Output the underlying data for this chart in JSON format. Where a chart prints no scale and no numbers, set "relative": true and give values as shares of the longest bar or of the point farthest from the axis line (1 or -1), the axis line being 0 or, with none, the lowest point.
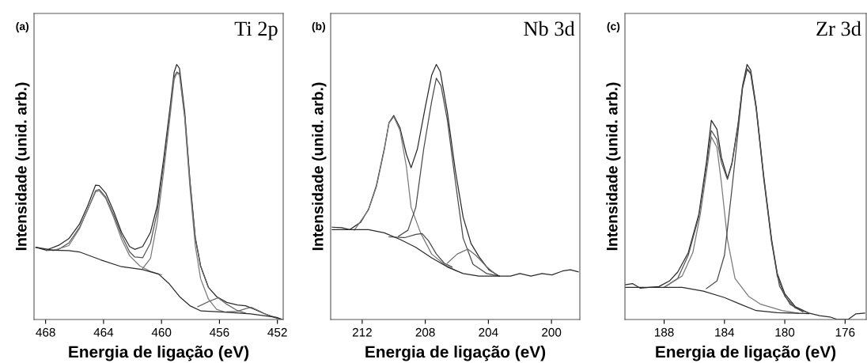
{
  "chart_data": [
    {
      "type": "line",
      "title": "Ti 2p",
      "annotations": [
        "(a)"
      ],
      "xlabel": "Energia de ligação (eV)",
      "ylabel": "Intensidade (unid. arb.)",
      "relative": true,
      "xlim": [
        468.8,
        451.6
      ],
      "xticks": [
        468,
        464,
        460,
        456,
        452
      ],
      "tick_labels": "x",
      "grid": false,
      "line_style": "solid",
      "marker": "none",
      "series": [
        {
          "color": "#2a2a2a",
          "x": [
            468.67,
            467.95,
            467.1,
            466.4,
            465.67,
            465.1,
            464.55,
            464.3,
            463.85,
            463.3,
            462.76,
            462.2,
            461.85,
            461.3,
            460.76,
            460.3,
            459.85,
            459.4,
            459.13,
            458.95,
            458.76,
            458.4,
            458.04,
            457.67,
            457.3,
            456.76,
            456.2,
            455.5,
            454.76,
            454.2,
            453.67,
            452.95,
            452.2,
            451.67
          ],
          "values": [
            0.283,
            0.272,
            0.291,
            0.317,
            0.373,
            0.445,
            0.527,
            0.525,
            0.496,
            0.424,
            0.342,
            0.286,
            0.275,
            0.286,
            0.342,
            0.445,
            0.63,
            0.836,
            0.969,
            1.0,
            0.985,
            0.815,
            0.548,
            0.322,
            0.209,
            0.126,
            0.09,
            0.067,
            0.057,
            0.054,
            0.042,
            0.024,
            0.008,
            0.0
          ]
        },
        {
          "color": "#555555",
          "x": [
            467.95,
            467.1,
            466.4,
            465.67,
            465.1,
            464.55,
            464.3,
            463.85,
            463.3,
            462.76,
            462.2,
            461.85,
            461.3,
            460.76,
            460.3,
            459.85,
            459.4,
            459.13,
            458.95,
            458.76,
            458.4,
            458.04,
            457.67,
            457.3,
            456.76
          ],
          "values": [
            0.27,
            0.275,
            0.3,
            0.36,
            0.43,
            0.505,
            0.51,
            0.48,
            0.41,
            0.33,
            0.265,
            0.245,
            0.242,
            0.3,
            0.42,
            0.61,
            0.82,
            0.95,
            0.97,
            0.965,
            0.8,
            0.54,
            0.32,
            0.21,
            0.126
          ]
        },
        {
          "color": "#7a7a7a",
          "x": [
            467.5,
            466.4,
            465.67,
            465.1,
            464.55,
            464.3,
            463.85,
            463.3,
            462.76,
            462.2,
            461.5,
            460.8,
            460.0
          ],
          "values": [
            0.27,
            0.29,
            0.355,
            0.43,
            0.5,
            0.505,
            0.475,
            0.4,
            0.315,
            0.25,
            0.21,
            0.19,
            0.175
          ]
        },
        {
          "color": "#7a7a7a",
          "x": [
            461.3,
            460.76,
            460.3,
            459.85,
            459.4,
            459.13,
            458.95,
            458.76,
            458.4,
            458.04,
            457.67,
            457.3,
            456.76,
            456.2,
            455.67
          ],
          "values": [
            0.2,
            0.24,
            0.38,
            0.58,
            0.8,
            0.94,
            0.965,
            0.96,
            0.79,
            0.52,
            0.29,
            0.16,
            0.08,
            0.04,
            0.03
          ]
        },
        {
          "color": "#6a6a6a",
          "x": [
            457.5,
            456.76,
            456.1,
            455.5,
            454.76,
            454.2
          ],
          "values": [
            0.05,
            0.07,
            0.085,
            0.06,
            0.035,
            0.025
          ]
        },
        {
          "color": "#6a6a6a",
          "x": [
            455.5,
            454.76,
            454.2,
            453.8,
            453.3,
            452.7,
            452.0
          ],
          "values": [
            0.03,
            0.032,
            0.042,
            0.048,
            0.035,
            0.018,
            0.006
          ]
        },
        {
          "color": "#2a2a2a",
          "x": [
            468.67,
            467.5,
            466.4,
            465.67,
            464.2,
            462.76,
            461.3,
            460.2,
            459.5,
            458.76,
            458.04,
            457.3,
            455.67,
            453.85,
            452.04,
            451.67
          ],
          "values": [
            0.283,
            0.272,
            0.27,
            0.265,
            0.234,
            0.207,
            0.196,
            0.178,
            0.142,
            0.09,
            0.054,
            0.034,
            0.029,
            0.022,
            0.008,
            0.0
          ]
        }
      ]
    },
    {
      "type": "line",
      "title": "Nb 3d",
      "annotations": [
        "(b)"
      ],
      "xlabel": "Energia de ligação (eV)",
      "ylabel": "Intensidade (unid. arb.)",
      "relative": true,
      "xlim": [
        214.0,
        198.2
      ],
      "xticks": [
        212,
        208,
        204,
        200
      ],
      "tick_labels": "x",
      "grid": false,
      "line_style": "solid",
      "marker": "none",
      "series": [
        {
          "color": "#2a2a2a",
          "x": [
            213.9,
            213.3,
            212.8,
            212.1,
            211.6,
            211.1,
            210.6,
            210.3,
            210.0,
            209.6,
            209.2,
            208.9,
            208.5,
            208.0,
            207.6,
            207.3,
            207.05,
            206.6,
            206.1,
            205.6,
            205.1,
            204.6,
            203.97,
            203.3,
            202.6,
            202.0,
            201.3,
            200.6,
            199.97,
            199.3,
            198.8,
            198.3
          ],
          "values": [
            0.362,
            0.36,
            0.352,
            0.381,
            0.432,
            0.525,
            0.669,
            0.772,
            0.8,
            0.751,
            0.648,
            0.595,
            0.669,
            0.833,
            0.957,
            1.0,
            0.972,
            0.813,
            0.586,
            0.401,
            0.298,
            0.247,
            0.195,
            0.17,
            0.17,
            0.18,
            0.17,
            0.18,
            0.175,
            0.19,
            0.195,
            0.187
          ]
        },
        {
          "color": "#7a7a7a",
          "x": [
            212.5,
            211.6,
            211.1,
            210.6,
            210.3,
            210.0,
            209.6,
            209.2,
            208.9,
            208.3,
            207.6,
            206.8,
            206.0
          ],
          "values": [
            0.35,
            0.43,
            0.52,
            0.665,
            0.77,
            0.795,
            0.74,
            0.6,
            0.44,
            0.34,
            0.257,
            0.216,
            0.19
          ]
        },
        {
          "color": "#4a4a4a",
          "x": [
            209.7,
            209.1,
            208.6,
            208.1,
            207.6,
            207.3,
            207.0,
            206.6,
            206.1,
            205.6,
            204.97,
            204.1,
            203.3
          ],
          "values": [
            0.326,
            0.35,
            0.44,
            0.669,
            0.854,
            0.946,
            0.916,
            0.782,
            0.545,
            0.319,
            0.216,
            0.18,
            0.17
          ]
        },
        {
          "color": "#4a4a4a",
          "x": [
            210.3,
            209.3,
            208.6,
            208.2,
            207.8,
            207.3,
            206.8,
            206.3
          ],
          "values": [
            0.324,
            0.321,
            0.334,
            0.337,
            0.309,
            0.257,
            0.221,
            0.206
          ]
        },
        {
          "color": "#6a6a6a",
          "x": [
            206.6,
            205.97,
            205.3,
            204.8,
            204.1,
            203.5
          ],
          "values": [
            0.221,
            0.257,
            0.276,
            0.252,
            0.206,
            0.175
          ]
        },
        {
          "color": "#2a2a2a",
          "x": [
            213.9,
            211.6,
            210.6,
            209.6,
            208.6,
            207.6,
            206.6,
            205.6,
            204.6,
            203.3
          ],
          "values": [
            0.352,
            0.352,
            0.34,
            0.314,
            0.283,
            0.242,
            0.206,
            0.18,
            0.17,
            0.17
          ]
        }
      ]
    },
    {
      "type": "line",
      "title": "Zr 3d",
      "annotations": [
        "(c)"
      ],
      "xlabel": "Energia de ligação (eV)",
      "ylabel": "Intensidade (unid. arb.)",
      "relative": true,
      "xlim": [
        190.6,
        174.6
      ],
      "xticks": [
        188,
        184,
        180,
        176
      ],
      "tick_labels": "x",
      "grid": false,
      "line_style": "solid",
      "marker": "none",
      "series": [
        {
          "color": "#2a2a2a",
          "x": [
            190.6,
            190.1,
            189.6,
            189.0,
            188.35,
            187.65,
            187.1,
            186.4,
            185.7,
            185.2,
            184.87,
            184.5,
            184.2,
            183.8,
            183.5,
            183.1,
            182.8,
            182.5,
            182.26,
            181.9,
            181.4,
            180.87,
            180.5,
            180.0,
            179.3,
            178.4,
            177.7,
            177.0,
            176.5,
            175.8,
            175.3,
            174.7
          ],
          "values": [
            0.136,
            0.141,
            0.123,
            0.126,
            0.129,
            0.151,
            0.186,
            0.262,
            0.413,
            0.615,
            0.781,
            0.746,
            0.635,
            0.554,
            0.615,
            0.766,
            0.917,
            1.0,
            0.978,
            0.837,
            0.565,
            0.313,
            0.181,
            0.101,
            0.05,
            0.025,
            0.015,
            0.01,
            0.0,
            0.0,
            0.022,
            0.025
          ]
        },
        {
          "color": "#555555",
          "x": [
            188.0,
            187.1,
            186.4,
            185.7,
            185.2,
            184.87,
            184.5,
            184.2,
            183.8,
            183.5,
            183.1,
            182.8,
            182.5,
            182.26,
            181.9,
            181.4,
            180.87,
            180.5,
            180.0,
            179.3,
            178.4
          ],
          "values": [
            0.126,
            0.161,
            0.252,
            0.403,
            0.595,
            0.741,
            0.706,
            0.615,
            0.549,
            0.61,
            0.761,
            0.912,
            0.983,
            0.968,
            0.832,
            0.559,
            0.307,
            0.171,
            0.091,
            0.045,
            0.025
          ]
        },
        {
          "color": "#7a7a7a",
          "x": [
            188.0,
            186.8,
            186.1,
            185.6,
            185.1,
            184.87,
            184.5,
            184.2,
            183.8,
            183.3,
            182.4,
            181.6,
            180.2,
            179.1
          ],
          "values": [
            0.126,
            0.171,
            0.262,
            0.413,
            0.615,
            0.716,
            0.675,
            0.534,
            0.313,
            0.161,
            0.091,
            0.06,
            0.035,
            0.025
          ]
        },
        {
          "color": "#4a4a4a",
          "x": [
            185.2,
            184.5,
            184.0,
            183.5,
            183.1,
            182.8,
            182.5,
            182.26,
            181.9,
            181.4,
            180.87,
            180.35,
            179.65,
            178.8
          ],
          "values": [
            0.121,
            0.151,
            0.252,
            0.514,
            0.736,
            0.907,
            0.98,
            0.963,
            0.827,
            0.554,
            0.302,
            0.131,
            0.06,
            0.03
          ]
        },
        {
          "color": "#2a2a2a",
          "x": [
            190.6,
            188.5,
            186.8,
            185.4,
            184.0,
            182.95,
            181.9,
            180.5,
            178.4
          ],
          "values": [
            0.126,
            0.126,
            0.126,
            0.111,
            0.086,
            0.06,
            0.035,
            0.027,
            0.023
          ]
        }
      ]
    }
  ]
}
